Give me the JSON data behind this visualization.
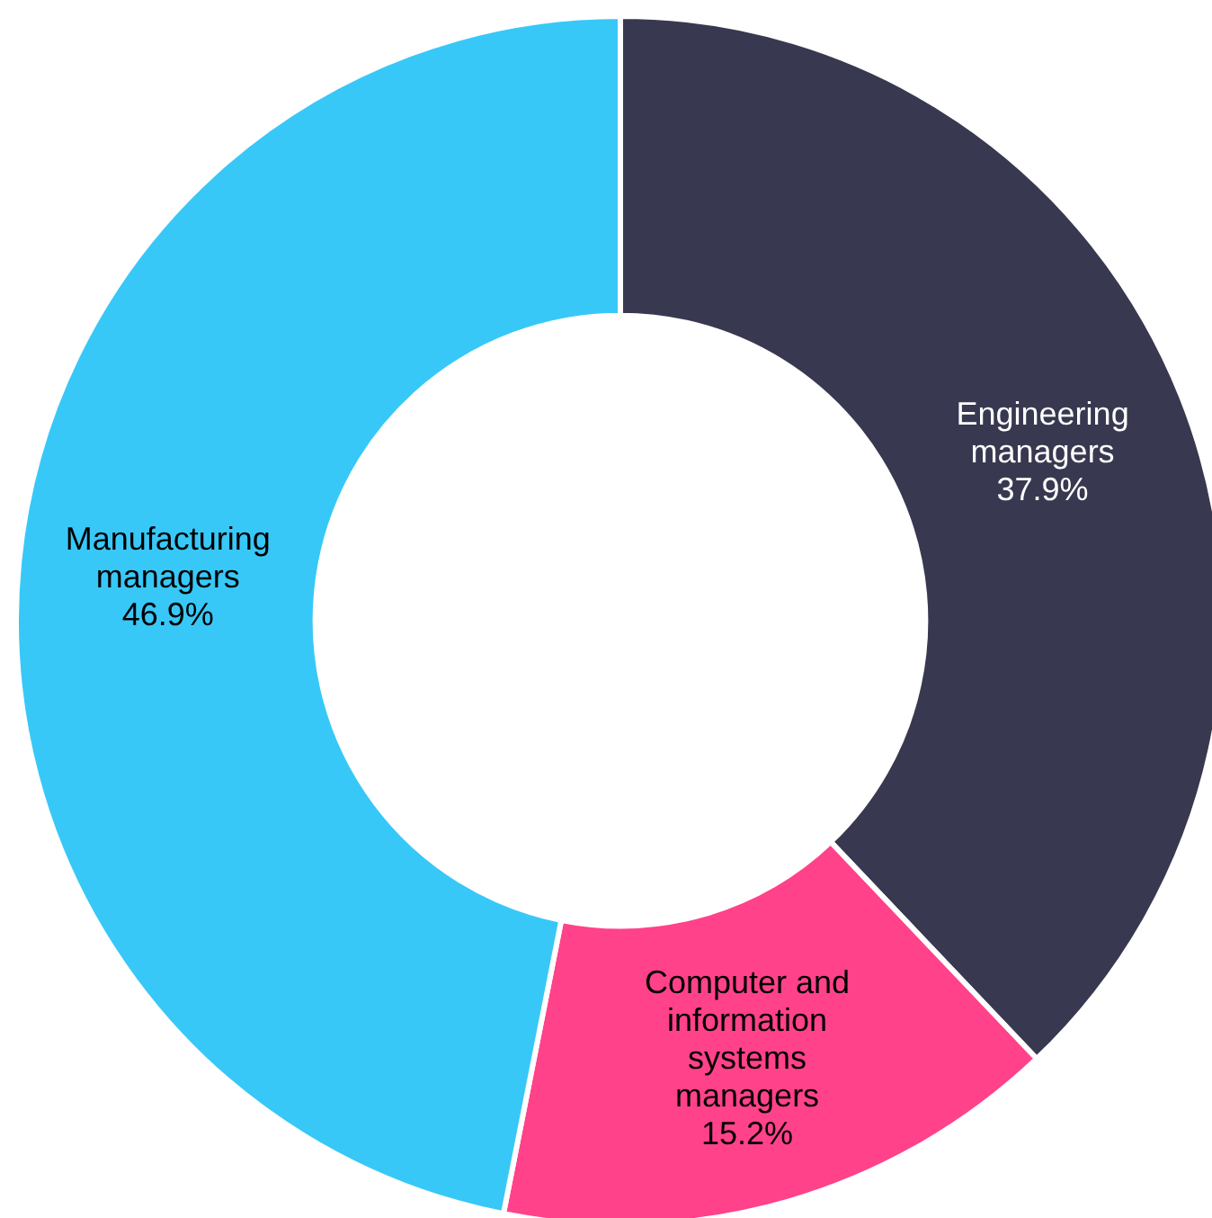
{
  "chart_data": {
    "type": "donut",
    "categories": [
      "Engineering managers",
      "Computer and information systems managers",
      "Manufacturing managers"
    ],
    "values": [
      37.9,
      15.2,
      46.9
    ],
    "value_labels": [
      "37.9%",
      "15.2%",
      "46.9%"
    ],
    "colors": [
      "#383850",
      "#ff428a",
      "#38c8f8"
    ]
  }
}
